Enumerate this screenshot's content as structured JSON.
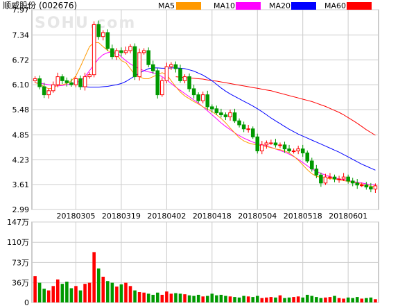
{
  "header": {
    "stock_name": "顺威股份",
    "stock_code": "(002676)"
  },
  "legend": [
    {
      "label": "MA5",
      "color": "#ff9900"
    },
    {
      "label": "MA10",
      "color": "#ff00ff"
    },
    {
      "label": "MA20",
      "color": "#0000ff"
    },
    {
      "label": "MA60",
      "color": "#ff0000"
    }
  ],
  "watermark": "SOHU.com",
  "colors": {
    "up": "#ff0000",
    "down": "#009900",
    "grid": "#cccccc",
    "frame": "#999999",
    "text": "#000000"
  },
  "chart_data": [
    {
      "type": "candlestick",
      "title": "顺威股份 (002676)",
      "y_ticks": [
        "7.97",
        "7.34",
        "6.72",
        "6.10",
        "5.48",
        "4.85",
        "4.23",
        "3.61",
        "2.99"
      ],
      "ylim": [
        2.99,
        7.97
      ],
      "x_tick_labels": [
        {
          "label": "20180305",
          "index": 9
        },
        {
          "label": "20180319",
          "index": 19
        },
        {
          "label": "20180402",
          "index": 29
        },
        {
          "label": "20180418",
          "index": 39
        },
        {
          "label": "20180504",
          "index": 49
        },
        {
          "label": "20180518",
          "index": 59
        },
        {
          "label": "20180601",
          "index": 69
        }
      ],
      "series_names": [
        "MA5",
        "MA10",
        "MA20",
        "MA60"
      ],
      "close": [
        6.25,
        6.05,
        5.85,
        5.95,
        6.1,
        6.3,
        6.2,
        6.15,
        6.1,
        6.25,
        6.05,
        6.3,
        6.35,
        7.6,
        7.3,
        7.4,
        7.0,
        6.8,
        6.95,
        6.9,
        6.95,
        7.05,
        6.3,
        6.9,
        6.95,
        6.6,
        6.45,
        5.85,
        6.2,
        6.55,
        6.6,
        6.5,
        6.2,
        6.3,
        6.0,
        5.85,
        5.7,
        5.85,
        5.55,
        5.5,
        5.4,
        5.35,
        5.3,
        5.4,
        5.2,
        5.1,
        5.0,
        5.0,
        4.8,
        4.45,
        4.6,
        4.65,
        4.65,
        4.6,
        4.6,
        4.5,
        4.45,
        4.45,
        4.5,
        4.4,
        4.2,
        4.0,
        3.85,
        3.65,
        3.8,
        3.8,
        3.75,
        3.75,
        3.8,
        3.7,
        3.65,
        3.6,
        3.6,
        3.55,
        3.5,
        3.58
      ],
      "ma5": [
        6.15,
        6.12,
        6.05,
        6.0,
        6.02,
        6.09,
        6.1,
        6.13,
        6.2,
        6.32,
        6.55,
        6.8,
        7.05,
        7.15,
        7.15,
        7.05,
        6.95,
        6.9,
        6.85,
        6.7,
        6.65,
        6.5,
        6.35,
        6.3,
        6.25,
        6.25,
        6.3,
        6.35,
        6.4,
        6.35,
        6.2,
        6.05,
        5.92,
        5.82,
        5.75,
        5.68,
        5.62,
        5.55,
        5.49,
        5.43,
        5.35,
        5.26,
        5.15,
        5.02,
        4.9,
        4.78,
        4.7,
        4.65,
        4.62,
        4.6,
        4.58,
        4.56,
        4.53,
        4.5,
        4.48,
        4.45,
        4.4,
        4.32,
        4.22,
        4.1,
        3.98,
        3.88,
        3.82,
        3.79,
        3.77,
        3.76,
        3.75,
        3.73,
        3.71,
        3.69,
        3.67,
        3.65,
        3.62,
        3.59,
        3.57,
        3.56
      ],
      "ma10": [
        6.15,
        6.14,
        6.12,
        6.1,
        6.08,
        6.07,
        6.08,
        6.1,
        6.12,
        6.15,
        6.2,
        6.3,
        6.45,
        6.6,
        6.75,
        6.85,
        6.9,
        6.92,
        6.9,
        6.8,
        6.7,
        6.62,
        6.55,
        6.5,
        6.45,
        6.42,
        6.4,
        6.36,
        6.3,
        6.22,
        6.13,
        6.04,
        5.96,
        5.88,
        5.8,
        5.72,
        5.64,
        5.55,
        5.45,
        5.35,
        5.25,
        5.15,
        5.06,
        4.98,
        4.9,
        4.83,
        4.77,
        4.72,
        4.67,
        4.63,
        4.6,
        4.57,
        4.54,
        4.5,
        4.46,
        4.42,
        4.37,
        4.31,
        4.24,
        4.16,
        4.08,
        4.0,
        3.94,
        3.89,
        3.85,
        3.81,
        3.78,
        3.75,
        3.73,
        3.71,
        3.69,
        3.67,
        3.65,
        3.63,
        3.61,
        3.6
      ],
      "ma20": [
        6.05,
        6.05,
        6.04,
        6.04,
        6.04,
        6.05,
        6.06,
        6.08,
        6.1,
        6.13,
        6.18,
        6.25,
        6.32,
        6.39,
        6.45,
        6.5,
        6.52,
        6.52,
        6.51,
        6.51,
        6.52,
        6.52,
        6.51,
        6.5,
        6.47,
        6.44,
        6.39,
        6.34,
        6.27,
        6.2,
        6.11,
        6.02,
        5.94,
        5.87,
        5.81,
        5.75,
        5.69,
        5.63,
        5.57,
        5.5,
        5.43,
        5.35,
        5.27,
        5.2,
        5.13,
        5.06,
        4.99,
        4.93,
        4.87,
        4.82,
        4.77,
        4.72,
        4.67,
        4.62,
        4.57,
        4.52,
        4.47,
        4.42,
        4.36,
        4.3,
        4.24,
        4.18,
        4.12,
        4.07,
        4.02,
        3.97
      ],
      "ma60": [
        6.3,
        6.29,
        6.28,
        6.27,
        6.26,
        6.25,
        6.24,
        6.22,
        6.2,
        6.19,
        6.17,
        6.15,
        6.13,
        6.11,
        6.09,
        6.07,
        6.05,
        6.03,
        6.01,
        5.99,
        5.97,
        5.95,
        5.92,
        5.89,
        5.86,
        5.83,
        5.8,
        5.77,
        5.74,
        5.71,
        5.68,
        5.64,
        5.6,
        5.56,
        5.51,
        5.46,
        5.41,
        5.35,
        5.28,
        5.21,
        5.14,
        5.06,
        4.98,
        4.91,
        4.84
      ]
    },
    {
      "type": "bar",
      "title": "",
      "y_ticks": [
        "147万",
        "110万",
        "73万",
        "36万",
        "0"
      ],
      "ylim": [
        0,
        147
      ],
      "unit": "万",
      "volume": [
        48,
        36,
        25,
        22,
        30,
        42,
        34,
        38,
        26,
        30,
        22,
        34,
        36,
        92,
        62,
        47,
        39,
        36,
        29,
        33,
        36,
        30,
        22,
        19,
        18,
        16,
        14,
        18,
        14,
        20,
        16,
        17,
        16,
        15,
        13,
        12,
        14,
        11,
        12,
        16,
        13,
        14,
        12,
        11,
        10,
        9,
        12,
        11,
        10,
        12,
        8,
        9,
        10,
        9,
        13,
        8,
        9,
        10,
        11,
        9,
        14,
        12,
        10,
        8,
        9,
        10,
        12,
        8,
        7,
        9,
        8,
        10,
        7,
        8,
        9,
        6
      ]
    }
  ]
}
